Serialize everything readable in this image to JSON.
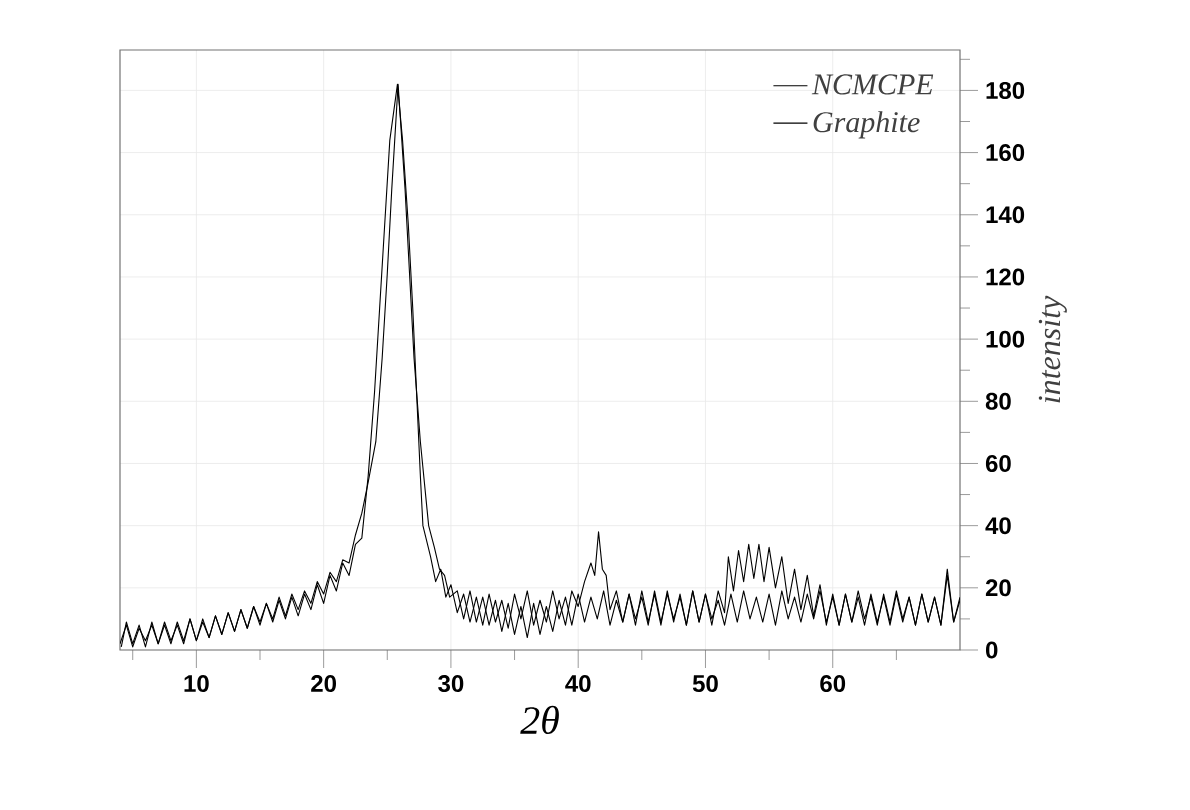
{
  "chart_data": {
    "type": "line",
    "xlabel": "2θ",
    "ylabel": "intensity",
    "xlim": [
      4,
      70
    ],
    "ylim": [
      0,
      193
    ],
    "xticks": [
      {
        "value": 5,
        "label": null
      },
      10,
      {
        "value": 15,
        "label": null
      },
      20,
      {
        "value": 25,
        "label": null
      },
      30,
      {
        "value": 35,
        "label": null
      },
      40,
      {
        "value": 45,
        "label": null
      },
      50,
      {
        "value": 55,
        "label": null
      },
      60,
      {
        "value": 65,
        "label": null
      }
    ],
    "yticks": [
      0,
      {
        "value": 10,
        "label": null
      },
      20,
      {
        "value": 30,
        "label": null
      },
      40,
      {
        "value": 50,
        "label": null
      },
      60,
      {
        "value": 70,
        "label": null
      },
      80,
      {
        "value": 90,
        "label": null
      },
      100,
      {
        "value": 110,
        "label": null
      },
      120,
      {
        "value": 130,
        "label": null
      },
      140,
      {
        "value": 150,
        "label": null
      },
      160,
      {
        "value": 170,
        "label": null
      },
      180,
      {
        "value": 190,
        "label": null
      }
    ],
    "grid": true,
    "legend": "top right",
    "series": [
      {
        "name": "NCMCPE",
        "color": "#000000",
        "x": [
          4.1,
          4.5,
          5,
          5.5,
          6,
          6.5,
          7,
          7.5,
          8,
          8.5,
          9,
          9.5,
          10,
          10.5,
          11,
          11.5,
          12,
          12.5,
          13,
          13.5,
          14,
          14.5,
          15,
          15.5,
          16,
          16.5,
          17,
          17.5,
          18,
          18.5,
          19,
          19.5,
          20,
          20.5,
          21,
          21.5,
          22,
          22.5,
          23,
          23.5,
          24.1,
          24.6,
          25,
          25.35,
          25.85,
          26.4,
          26.75,
          27.1,
          27.6,
          28.25,
          28.7,
          29.1,
          29.5,
          29.9,
          30.5,
          31,
          31.5,
          32,
          32.5,
          33,
          33.5,
          34,
          34.5,
          35,
          35.5,
          36,
          36.5,
          37,
          37.5,
          38,
          38.5,
          39,
          39.5,
          40,
          40.5,
          41,
          41.3,
          41.6,
          41.9,
          42.2,
          42.5,
          43,
          43.5,
          44,
          44.5,
          45,
          45.5,
          46,
          46.5,
          47,
          47.5,
          48,
          48.5,
          49,
          49.5,
          50,
          50.5,
          51,
          51.5,
          51.8,
          52.2,
          52.6,
          53,
          53.4,
          53.8,
          54.2,
          54.6,
          55,
          55.5,
          56,
          56.5,
          57,
          57.5,
          58,
          58.5,
          59,
          59.5,
          60,
          60.5,
          61,
          61.5,
          62,
          62.5,
          63,
          63.5,
          64,
          64.5,
          65,
          65.5,
          66,
          66.5,
          67,
          67.5,
          68,
          68.5,
          69,
          69.5,
          70
        ],
        "values": [
          1,
          9,
          2,
          8,
          1,
          9,
          2,
          8,
          2,
          9,
          3,
          10,
          3,
          10,
          4,
          11,
          5,
          12,
          6,
          13,
          7,
          14,
          9,
          15,
          10,
          17,
          11,
          18,
          13,
          19,
          15,
          22,
          18,
          25,
          22,
          29,
          28,
          37,
          44,
          54,
          67,
          94,
          121,
          148,
          182,
          148,
          121,
          94,
          67,
          40,
          33,
          26,
          24,
          17,
          19,
          10,
          19,
          9,
          17,
          8,
          16,
          6,
          15,
          5,
          14,
          4,
          15,
          5,
          14,
          6,
          16,
          8,
          19,
          14,
          22,
          28,
          24,
          38,
          26,
          24,
          13,
          19,
          9,
          18,
          8,
          19,
          9,
          18,
          8,
          19,
          9,
          18,
          8,
          19,
          9,
          18,
          8,
          19,
          12,
          30,
          19,
          32,
          22,
          34,
          23,
          34,
          22,
          33,
          20,
          30,
          15,
          26,
          13,
          24,
          11,
          21,
          8,
          18,
          8,
          18,
          9,
          17,
          8,
          18,
          9,
          17,
          8,
          18,
          9,
          17,
          8,
          18,
          9,
          17,
          8,
          24,
          9,
          17
        ]
      },
      {
        "name": "Graphite",
        "color": "#000000",
        "x": [
          4,
          4.5,
          5,
          5.5,
          6,
          6.5,
          7,
          7.5,
          8,
          8.5,
          9,
          9.5,
          10,
          10.5,
          11,
          11.5,
          12,
          12.5,
          13,
          13.5,
          14,
          14.5,
          15,
          15.5,
          16,
          16.5,
          17,
          17.5,
          18,
          18.5,
          19,
          19.5,
          20,
          20.5,
          21,
          21.5,
          22,
          22.5,
          23,
          23.5,
          24,
          24.4,
          24.8,
          25.2,
          25.8,
          26.2,
          26.65,
          27,
          27.3,
          27.6,
          27.8,
          28.4,
          28.8,
          29.2,
          29.6,
          30,
          30.5,
          31,
          31.5,
          32,
          32.5,
          33,
          33.5,
          34,
          34.5,
          35,
          35.5,
          36,
          36.5,
          37,
          37.5,
          38,
          38.5,
          39,
          39.5,
          40,
          40.5,
          41,
          41.5,
          42,
          42.5,
          43,
          43.5,
          44,
          44.5,
          45,
          45.5,
          46,
          46.5,
          47,
          47.5,
          48,
          48.5,
          49,
          49.5,
          50,
          50.5,
          51,
          51.5,
          52,
          52.5,
          53,
          53.5,
          54,
          54.5,
          55,
          55.5,
          56,
          56.5,
          57,
          57.5,
          58,
          58.5,
          59,
          59.5,
          60,
          60.5,
          61,
          61.5,
          62,
          62.5,
          63,
          63.5,
          64,
          64.5,
          65,
          65.5,
          66,
          66.5,
          67,
          67.5,
          68,
          68.5,
          69,
          69.5,
          70
        ],
        "values": [
          2,
          8,
          1,
          7,
          3,
          8,
          2,
          9,
          3,
          8,
          2,
          10,
          3,
          9,
          4,
          11,
          5,
          12,
          6,
          13,
          7,
          14,
          8,
          15,
          9,
          16,
          10,
          17,
          11,
          18,
          13,
          21,
          15,
          24,
          19,
          28,
          24,
          34,
          36,
          56,
          83,
          110,
          137,
          164,
          182,
          164,
          137,
          110,
          83,
          56,
          40,
          30,
          22,
          26,
          17,
          21,
          12,
          18,
          9,
          17,
          8,
          18,
          9,
          16,
          7,
          18,
          10,
          19,
          8,
          16,
          9,
          19,
          10,
          17,
          8,
          18,
          9,
          17,
          10,
          19,
          8,
          16,
          9,
          18,
          10,
          17,
          8,
          19,
          9,
          18,
          10,
          17,
          8,
          19,
          9,
          18,
          10,
          16,
          8,
          18,
          9,
          19,
          10,
          17,
          9,
          18,
          8,
          19,
          10,
          17,
          9,
          18,
          10,
          19,
          9,
          17,
          8,
          18,
          9,
          19,
          10,
          17,
          8,
          18,
          9,
          19,
          10,
          17,
          8,
          18,
          9,
          17,
          8,
          26,
          9,
          16
        ]
      }
    ]
  }
}
